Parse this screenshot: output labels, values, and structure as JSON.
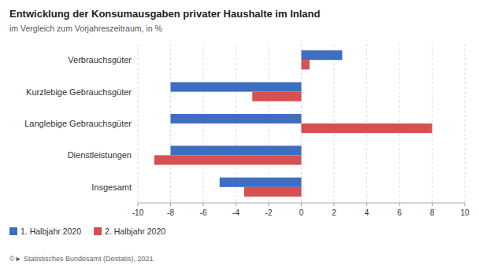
{
  "chart_data": {
    "type": "bar",
    "orientation": "horizontal",
    "title": "Entwicklung der Konsumausgaben privater Haushalte im Inland",
    "subtitle": "im Vergleich zum Vorjahreszeitraum, in %",
    "categories": [
      "Insgesamt",
      "Dienstleistungen",
      "Langlebige Gebrauchsgüter",
      "Kurzlebige Gebrauchsgüter",
      "Verbrauchsgüter"
    ],
    "series": [
      {
        "name": "1. Halbjahr 2020",
        "color": "#3E6EBF",
        "values": [
          -5.0,
          -8.0,
          -8.0,
          -8.0,
          2.5
        ]
      },
      {
        "name": "2. Halbjahr 2020",
        "color": "#D94F4F",
        "values": [
          -3.5,
          -9.0,
          8.0,
          -3.0,
          0.5
        ]
      }
    ],
    "xlim": [
      -10,
      10
    ],
    "xticks": [
      -10,
      -8,
      -6,
      -4,
      -2,
      0,
      2,
      4,
      6,
      8,
      10
    ],
    "grid": true,
    "legend": "bottom",
    "footer": "©► Statistisches Bundesamt (Destatis), 2021"
  }
}
